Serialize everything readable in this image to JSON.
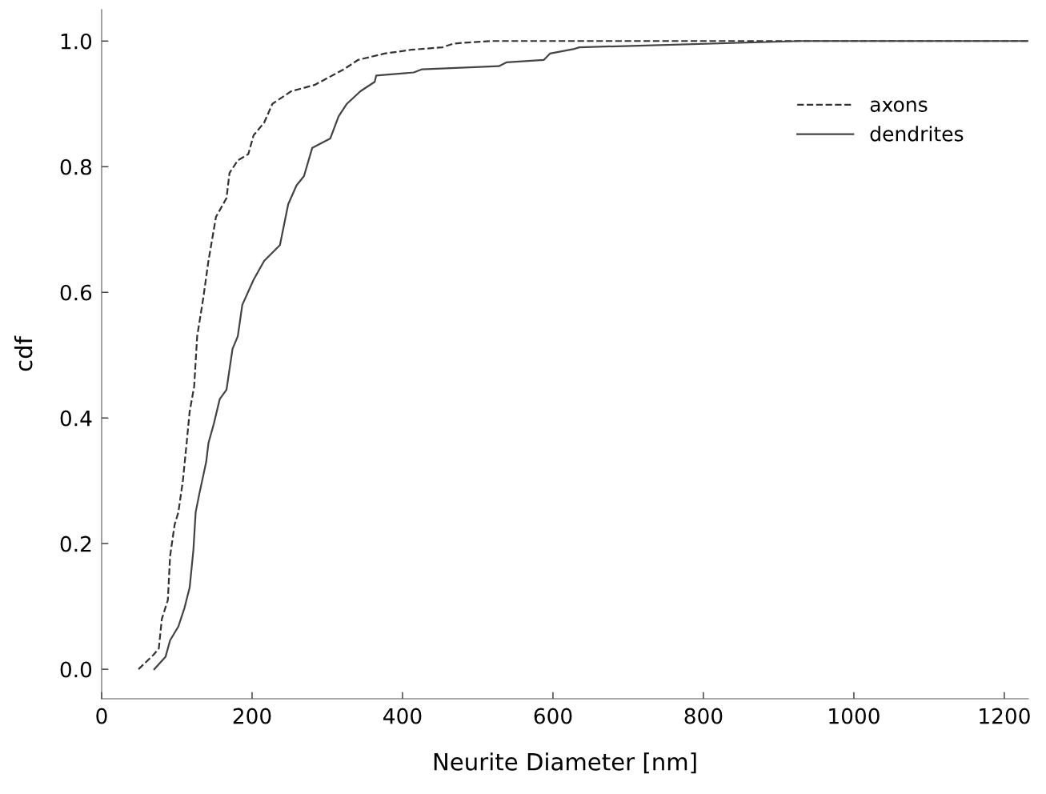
{
  "chart_data": {
    "type": "line",
    "xlabel": "Neurite Diameter [nm]",
    "ylabel": "cdf",
    "xlim": [
      0,
      1232
    ],
    "ylim": [
      -0.047,
      1.05
    ],
    "xticks": [
      0,
      200,
      400,
      600,
      800,
      1000,
      1200
    ],
    "yticks": [
      {
        "value": 0,
        "label": "0.0"
      },
      {
        "value": 0.2,
        "label": "0.2"
      },
      {
        "value": 0.4,
        "label": "0.4"
      },
      {
        "value": 0.6,
        "label": "0.6"
      },
      {
        "value": 0.8,
        "label": "0.8"
      },
      {
        "value": 1.0,
        "label": "1.0"
      }
    ],
    "grid": false,
    "legend": "top right",
    "marker": "none",
    "series": [
      {
        "name": "axons",
        "color": "#333333",
        "line_style": "dashed",
        "x": [
          49,
          69,
          76,
          80,
          88,
          91,
          97,
          102,
          108,
          113,
          117,
          123,
          127,
          135,
          142,
          152,
          166,
          170,
          181,
          195,
          202,
          216,
          227,
          252,
          283,
          322,
          341,
          376,
          411,
          453,
          468,
          518,
          1232
        ],
        "values": [
          0.0,
          0.023,
          0.033,
          0.08,
          0.11,
          0.18,
          0.23,
          0.25,
          0.3,
          0.36,
          0.41,
          0.45,
          0.53,
          0.59,
          0.65,
          0.72,
          0.75,
          0.79,
          0.81,
          0.82,
          0.85,
          0.87,
          0.9,
          0.92,
          0.93,
          0.955,
          0.97,
          0.98,
          0.986,
          0.99,
          0.996,
          1.0,
          1.0
        ]
      },
      {
        "name": "dendrites",
        "color": "#444444",
        "line_style": "solid",
        "x": [
          70,
          85,
          91,
          102,
          110,
          117,
          122,
          125,
          130,
          139,
          142,
          149,
          157,
          166,
          174,
          181,
          187,
          202,
          216,
          237,
          248,
          259,
          269,
          280,
          304,
          315,
          326,
          344,
          363,
          365,
          415,
          426,
          528,
          538,
          588,
          596,
          627,
          635,
          695,
          929,
          1232
        ],
        "values": [
          0.0,
          0.02,
          0.046,
          0.068,
          0.097,
          0.13,
          0.19,
          0.25,
          0.28,
          0.33,
          0.36,
          0.39,
          0.43,
          0.445,
          0.51,
          0.53,
          0.58,
          0.62,
          0.65,
          0.675,
          0.74,
          0.77,
          0.785,
          0.83,
          0.845,
          0.88,
          0.9,
          0.92,
          0.935,
          0.945,
          0.95,
          0.955,
          0.96,
          0.966,
          0.97,
          0.98,
          0.987,
          0.99,
          0.992,
          1.0,
          1.0
        ]
      }
    ]
  }
}
